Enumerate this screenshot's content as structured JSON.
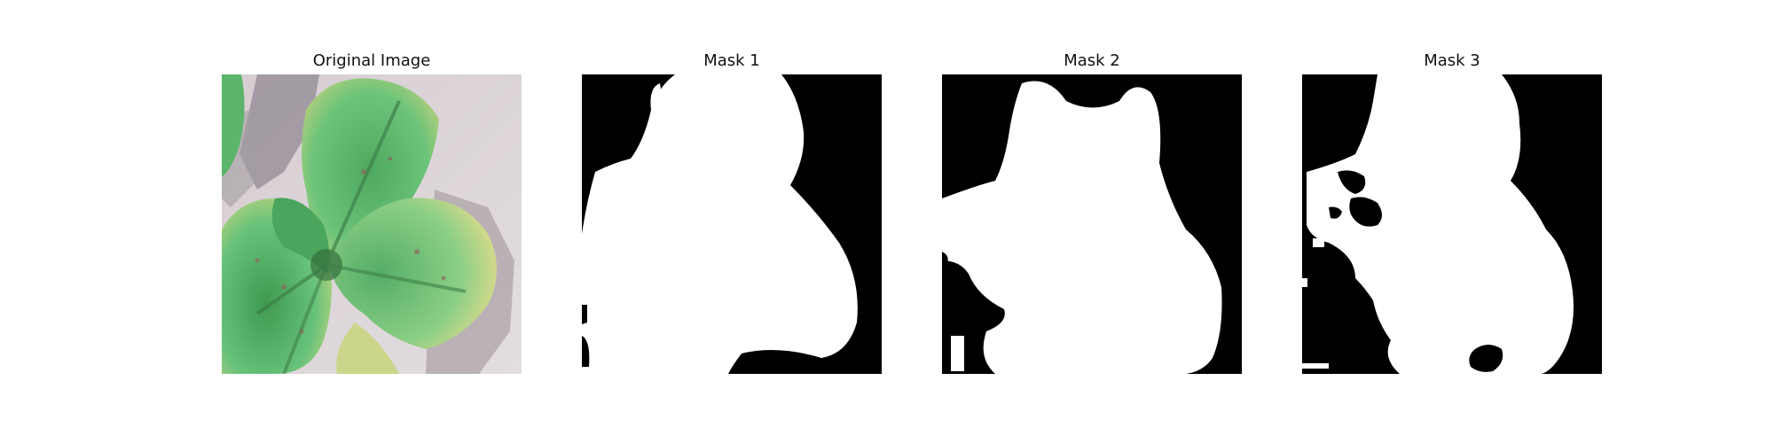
{
  "figure": {
    "panels": [
      {
        "title": "Original Image",
        "content": "leaf-photo"
      },
      {
        "title": "Mask 1",
        "content": "segmentation-mask"
      },
      {
        "title": "Mask 2",
        "content": "segmentation-mask"
      },
      {
        "title": "Mask 3",
        "content": "segmentation-mask"
      }
    ],
    "colors": {
      "background": "#ffffff",
      "mask_foreground": "#ffffff",
      "mask_background": "#000000",
      "leaf_green": "#5fbf72",
      "leaf_dark": "#2f7d43",
      "leaf_yellow": "#c8d67f",
      "photo_background": "#d8d1d3"
    }
  }
}
